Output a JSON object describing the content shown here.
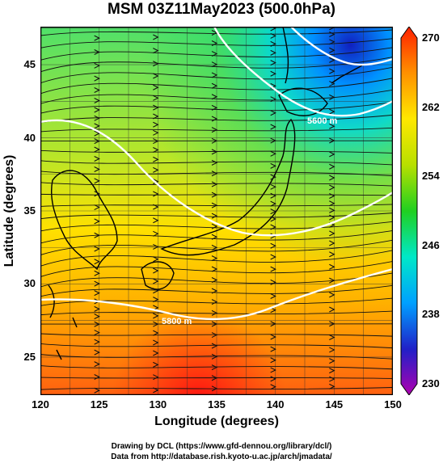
{
  "title": "MSM 03Z11May2023 (500.0hPa)",
  "x_axis": {
    "label": "Longitude (degrees)",
    "ticks": [
      120,
      125,
      130,
      135,
      140,
      145,
      150
    ],
    "range": [
      120,
      150
    ]
  },
  "y_axis": {
    "label": "Latitude  (degrees)",
    "ticks": [
      25,
      30,
      35,
      40,
      45
    ],
    "range": [
      22.4,
      47.6
    ]
  },
  "colorbar": {
    "ticks": [
      230,
      238,
      246,
      254,
      262,
      270
    ],
    "range": [
      230,
      270
    ],
    "colors": [
      "#b000b0",
      "#2020c8",
      "#00a0ff",
      "#00e8c8",
      "#20d020",
      "#b8e000",
      "#ffe800",
      "#ff9000",
      "#ff2000"
    ]
  },
  "contours": {
    "label_5800": "5800 m",
    "label_5600": "5600 m"
  },
  "credits": {
    "line1": "Drawing by DCL (https://www.gfd-dennou.org/library/dcl/)",
    "line2": "Data from http://database.rish.kyoto-u.ac.jp/arch/jmadata/"
  }
}
